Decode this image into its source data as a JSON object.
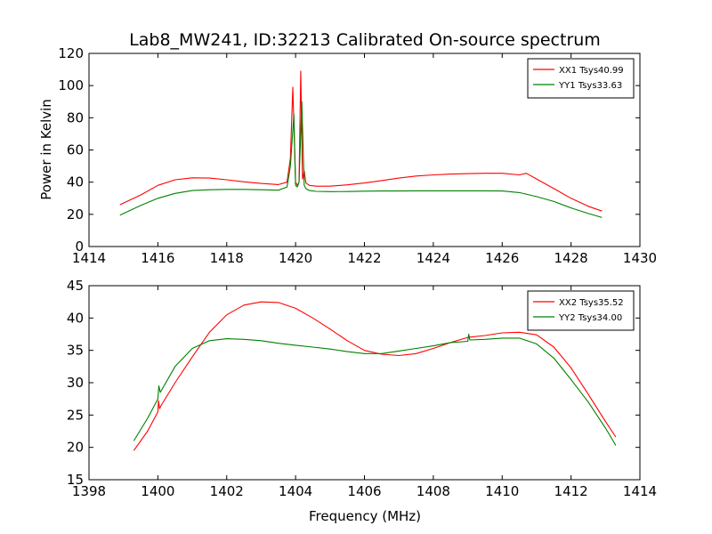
{
  "chart_data": [
    {
      "type": "line",
      "title": "Lab8_MW241, ID:32213 Calibrated On-source spectrum",
      "xlabel": "",
      "ylabel": "Power in Kelvin",
      "xlim": [
        1414,
        1430
      ],
      "ylim": [
        0,
        120
      ],
      "xticks": [
        "1414",
        "1416",
        "1418",
        "1420",
        "1422",
        "1424",
        "1426",
        "1428",
        "1430"
      ],
      "yticks": [
        "0",
        "20",
        "40",
        "60",
        "80",
        "100",
        "120"
      ],
      "legend_position": "top-right",
      "grid": false,
      "series": [
        {
          "name": "XX1 Tsys40.99",
          "color": "#ff0000",
          "x": [
            1414.9,
            1415.5,
            1416.0,
            1416.5,
            1417.0,
            1417.5,
            1418.0,
            1418.5,
            1419.0,
            1419.5,
            1419.75,
            1419.85,
            1419.92,
            1420.0,
            1420.05,
            1420.1,
            1420.15,
            1420.2,
            1420.25,
            1420.3,
            1420.4,
            1420.6,
            1421.0,
            1421.5,
            1422.0,
            1422.5,
            1423.0,
            1423.5,
            1424.0,
            1424.5,
            1425.0,
            1425.5,
            1426.0,
            1426.5,
            1426.7,
            1427.0,
            1427.5,
            1428.0,
            1428.5,
            1428.9
          ],
          "y": [
            26,
            32,
            38,
            41.5,
            42.7,
            42.5,
            41.5,
            40.2,
            39.2,
            38.5,
            40,
            55,
            99,
            40,
            38,
            40,
            109,
            42,
            47,
            39.5,
            38,
            37.5,
            37.5,
            38.3,
            39.5,
            41,
            42.5,
            43.8,
            44.5,
            45,
            45.3,
            45.5,
            45.5,
            44.5,
            45.5,
            42,
            36,
            30,
            25,
            22
          ]
        },
        {
          "name": "YY1 Tsys33.63",
          "color": "#008000",
          "x": [
            1414.9,
            1415.5,
            1416.0,
            1416.5,
            1417.0,
            1417.5,
            1418.0,
            1418.5,
            1419.0,
            1419.5,
            1419.75,
            1419.85,
            1419.95,
            1420.0,
            1420.05,
            1420.1,
            1420.18,
            1420.25,
            1420.3,
            1420.4,
            1420.6,
            1421.0,
            1421.5,
            1422.0,
            1422.5,
            1423.0,
            1423.5,
            1424.0,
            1424.5,
            1425.0,
            1425.5,
            1426.0,
            1426.5,
            1427.0,
            1427.5,
            1428.0,
            1428.5,
            1428.9
          ],
          "y": [
            19.5,
            25.5,
            30,
            33,
            34.8,
            35.3,
            35.5,
            35.5,
            35.3,
            35,
            37,
            50,
            82,
            38,
            37,
            40,
            90,
            38,
            36,
            34.8,
            34.3,
            34.1,
            34.2,
            34.4,
            34.5,
            34.5,
            34.6,
            34.6,
            34.6,
            34.6,
            34.6,
            34.5,
            33.5,
            31,
            28,
            24,
            20.5,
            18
          ]
        }
      ]
    },
    {
      "type": "line",
      "title": "",
      "xlabel": "Frequency (MHz)",
      "ylabel": "",
      "xlim": [
        1398,
        1414
      ],
      "ylim": [
        15,
        45
      ],
      "xticks": [
        "1398",
        "1400",
        "1402",
        "1404",
        "1406",
        "1408",
        "1410",
        "1412",
        "1414"
      ],
      "yticks": [
        "15",
        "20",
        "25",
        "30",
        "35",
        "40",
        "45"
      ],
      "legend_position": "top-right",
      "grid": false,
      "series": [
        {
          "name": "XX2 Tsys35.52",
          "color": "#ff0000",
          "x": [
            1399.3,
            1399.7,
            1400.0,
            1400.02,
            1400.05,
            1400.1,
            1400.5,
            1401.0,
            1401.5,
            1402.0,
            1402.5,
            1403.0,
            1403.5,
            1404.0,
            1404.5,
            1405.0,
            1405.5,
            1406.0,
            1406.5,
            1407.0,
            1407.5,
            1408.0,
            1408.5,
            1409.0,
            1409.5,
            1410.0,
            1410.5,
            1411.0,
            1411.5,
            1412.0,
            1412.5,
            1413.0,
            1413.3
          ],
          "y": [
            19.5,
            22.5,
            25.5,
            27.2,
            26,
            26.5,
            30,
            34,
            37.8,
            40.5,
            42,
            42.5,
            42.4,
            41.5,
            40,
            38.3,
            36.5,
            35,
            34.4,
            34.2,
            34.5,
            35.3,
            36.2,
            37,
            37.3,
            37.7,
            37.8,
            37.4,
            35.5,
            32.3,
            28.2,
            24,
            21.6
          ]
        },
        {
          "name": "YY2 Tsys34.00",
          "color": "#008000",
          "x": [
            1399.3,
            1399.7,
            1400.0,
            1400.03,
            1400.07,
            1400.5,
            1401.0,
            1401.5,
            1402.0,
            1402.5,
            1403.0,
            1403.5,
            1404.0,
            1404.5,
            1405.0,
            1405.5,
            1406.0,
            1406.5,
            1407.0,
            1407.5,
            1408.0,
            1408.5,
            1409.0,
            1409.03,
            1409.06,
            1409.5,
            1410.0,
            1410.5,
            1411.0,
            1411.5,
            1412.0,
            1412.5,
            1413.0,
            1413.3
          ],
          "y": [
            21,
            24.5,
            27.5,
            29.5,
            28.5,
            32.5,
            35.3,
            36.5,
            36.8,
            36.7,
            36.5,
            36.1,
            35.8,
            35.5,
            35.2,
            34.8,
            34.5,
            34.5,
            34.9,
            35.3,
            35.7,
            36.2,
            36.4,
            37.5,
            36.6,
            36.7,
            36.9,
            36.9,
            36,
            33.8,
            30.5,
            27,
            23,
            20.3
          ]
        }
      ]
    }
  ]
}
